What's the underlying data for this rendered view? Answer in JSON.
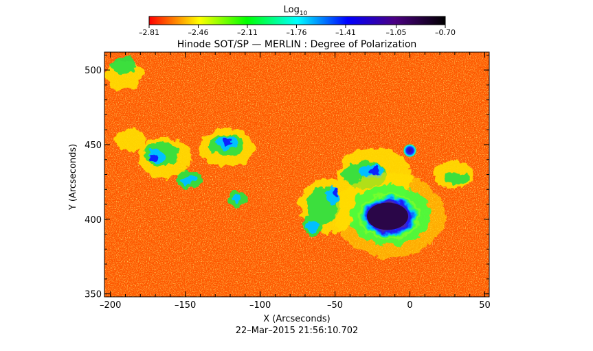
{
  "chart_data": {
    "type": "heatmap",
    "title": "Hinode SOT/SP — MERLIN : Degree of Polarization",
    "xlabel": "X (Arcseconds)",
    "ylabel": "Y (Arcseconds)",
    "timestamp": "22–Mar–2015 21:56:10.702",
    "xlim": [
      -204,
      53
    ],
    "ylim": [
      348,
      512
    ],
    "x_ticks": [
      -200,
      -150,
      -100,
      -50,
      0,
      50
    ],
    "y_ticks": [
      350,
      400,
      450,
      500
    ],
    "x_tick_labels": [
      "–200",
      "–150",
      "–100",
      "–50",
      "0",
      "50"
    ],
    "y_tick_labels": [
      "350",
      "400",
      "450",
      "500"
    ],
    "colorbar": {
      "label": "Log",
      "label_subscript": "10",
      "min": -2.81,
      "max": -0.7,
      "ticks": [
        -2.81,
        -2.46,
        -2.11,
        -1.76,
        -1.41,
        -1.05,
        -0.7
      ],
      "tick_labels": [
        "–2.81",
        "–2.46",
        "–2.11",
        "–1.76",
        "–1.41",
        "–1.05",
        "–0.70"
      ],
      "colors": [
        "#ff0000",
        "#ffff00",
        "#00ff00",
        "#00ffff",
        "#0000ff",
        "#4b0082",
        "#000000"
      ]
    },
    "features": [
      {
        "name": "sunspot",
        "x": -14,
        "y": 402,
        "value": -0.75
      },
      {
        "name": "pore",
        "x": 0,
        "y": 446,
        "value": -1.1
      }
    ]
  }
}
